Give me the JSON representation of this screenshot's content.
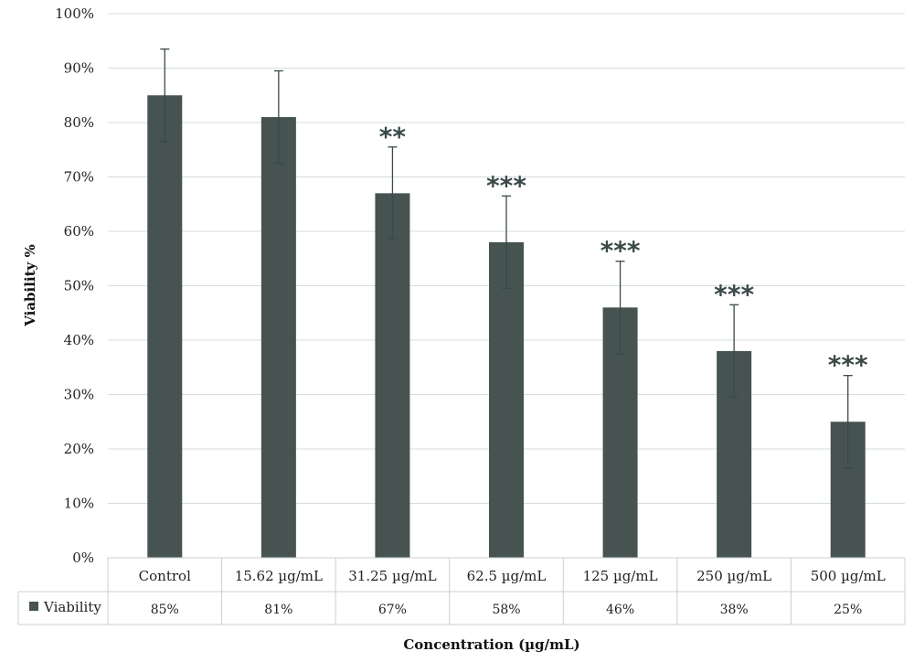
{
  "chart_data": {
    "type": "bar",
    "categories": [
      "Control",
      "15.62 µg/mL",
      "31.25 µg/mL",
      "62.5 µg/mL",
      "125 µg/mL",
      "250 µg/mL",
      "500 µg/mL"
    ],
    "series": [
      {
        "name": "Viability",
        "values": [
          85,
          81,
          67,
          58,
          46,
          38,
          25
        ],
        "errors": [
          8.5,
          8.5,
          8.5,
          8.5,
          8.5,
          8.5,
          8.5
        ],
        "table_values": [
          "85%",
          "81%",
          "67%",
          "58%",
          "46%",
          "38%",
          "25%"
        ],
        "color": "#465350"
      }
    ],
    "significance": [
      "",
      "",
      "**",
      "***",
      "***",
      "***",
      "***"
    ],
    "ylim": [
      0,
      100
    ],
    "yticks": [
      0,
      10,
      20,
      30,
      40,
      50,
      60,
      70,
      80,
      90,
      100
    ],
    "ytick_labels": [
      "0%",
      "10%",
      "20%",
      "30%",
      "40%",
      "50%",
      "60%",
      "70%",
      "80%",
      "90%",
      "100%"
    ],
    "ylabel": "Viability %",
    "xlabel": "Concentration (µg/mL)",
    "grid": true,
    "legend": "data-table",
    "colors": {
      "bar": "#465350",
      "grid": "#d4dcdc",
      "table_border": "#c8d0d0",
      "error_bar": "#3a4a48"
    }
  }
}
